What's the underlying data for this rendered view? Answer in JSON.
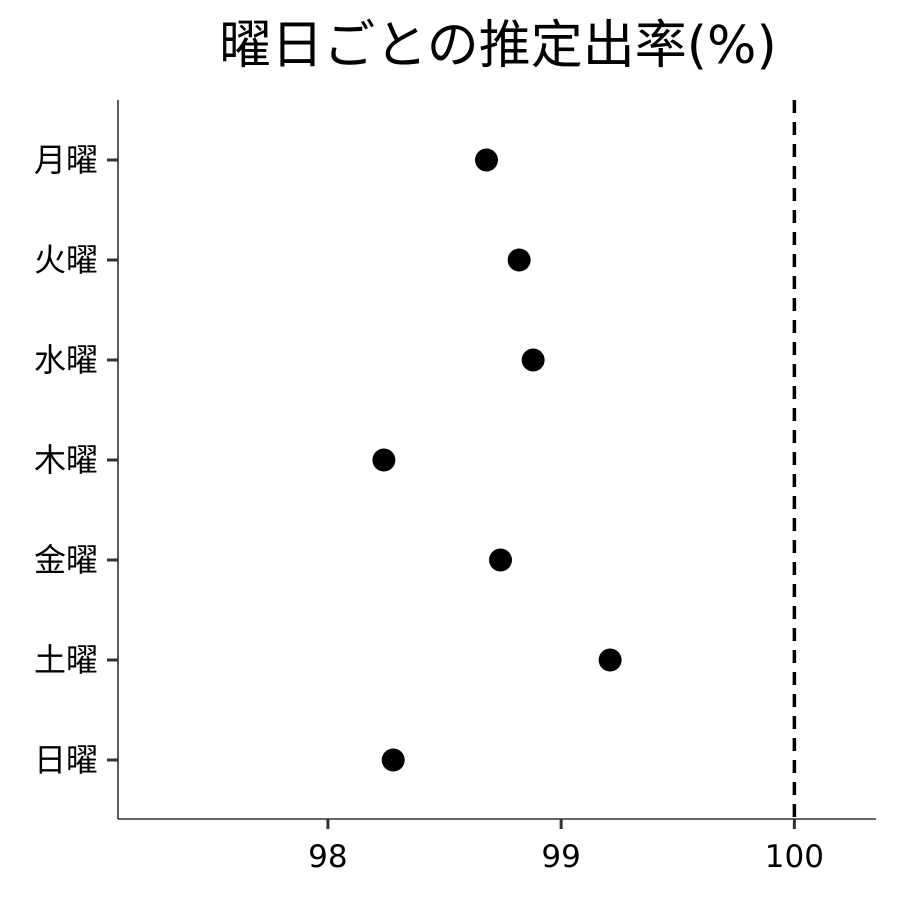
{
  "chart_data": {
    "type": "scatter",
    "title": "曜日ごとの推定出率(%)",
    "xlabel": "",
    "ylabel": "",
    "categories": [
      "月曜",
      "火曜",
      "水曜",
      "木曜",
      "金曜",
      "土曜",
      "日曜"
    ],
    "values": [
      98.68,
      98.82,
      98.88,
      98.24,
      98.74,
      99.21,
      98.28
    ],
    "xlim": [
      97.1,
      100.35
    ],
    "x_ticks": [
      98,
      99,
      100
    ],
    "x_tick_labels": [
      "98",
      "99",
      "100"
    ],
    "reference_line": {
      "x": 100,
      "style": "dashed"
    },
    "grid": false,
    "legend": "none"
  },
  "colors": {
    "point": "#000000",
    "axis": "#333333",
    "reference_line": "#000000",
    "text": "#000000"
  }
}
